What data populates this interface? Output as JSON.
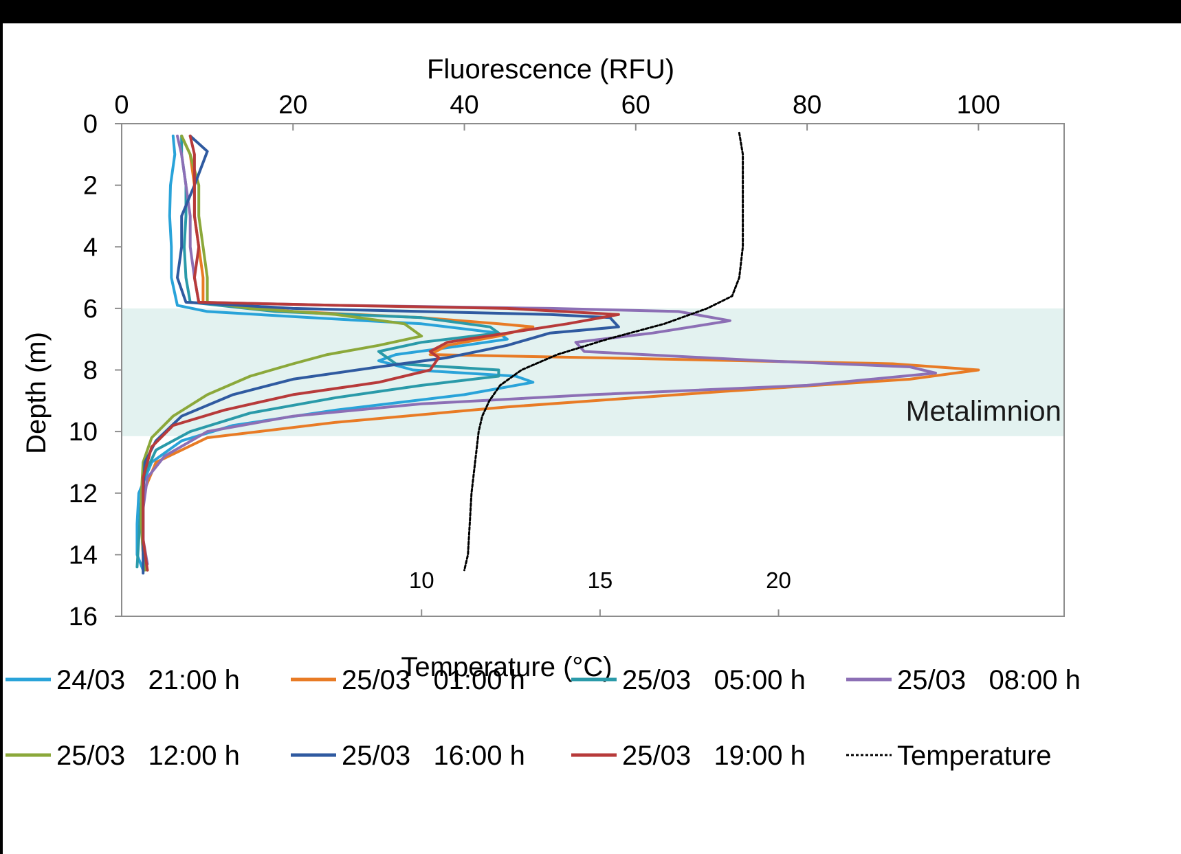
{
  "chart_data": {
    "type": "line",
    "top_axis": {
      "label": "Fluorescence (RFU)",
      "range": [
        0,
        110
      ],
      "ticks": [
        "0",
        "20",
        "40",
        "60",
        "80",
        "100"
      ]
    },
    "y_axis": {
      "label": "Depth (m)",
      "range": [
        0,
        16
      ],
      "inverted": true,
      "ticks": [
        "0",
        "2",
        "4",
        "6",
        "8",
        "10",
        "12",
        "14",
        "16"
      ]
    },
    "bottom_axis": {
      "label": "Temperature (°C)",
      "range": [
        1.6,
        28
      ],
      "ticks": [
        "10",
        "15",
        "20"
      ]
    },
    "band": {
      "label": "Metalimnion",
      "from_depth": 6,
      "to_depth": 10.15,
      "color": "#e3f2f0"
    },
    "series": [
      {
        "name": "24/03   21:00 h",
        "color": "#29a3d9",
        "axis": "fluorescence",
        "points": [
          [
            6,
            0.4
          ],
          [
            6.2,
            1
          ],
          [
            5.7,
            2
          ],
          [
            5.6,
            3
          ],
          [
            5.8,
            4
          ],
          [
            5.8,
            5
          ],
          [
            6.5,
            5.9
          ],
          [
            10,
            6.1
          ],
          [
            22,
            6.3
          ],
          [
            35,
            6.5
          ],
          [
            44,
            6.8
          ],
          [
            45,
            7
          ],
          [
            40,
            7.2
          ],
          [
            32,
            7.5
          ],
          [
            30,
            7.7
          ],
          [
            34,
            8
          ],
          [
            46,
            8.2
          ],
          [
            48,
            8.4
          ],
          [
            40,
            8.8
          ],
          [
            25,
            9.3
          ],
          [
            13,
            9.8
          ],
          [
            7,
            10.3
          ],
          [
            3.5,
            11
          ],
          [
            2,
            12
          ],
          [
            1.8,
            13
          ],
          [
            1.8,
            14
          ],
          [
            2.5,
            14.5
          ]
        ]
      },
      {
        "name": "25/03   01:00 h",
        "color": "#e87b25",
        "axis": "fluorescence",
        "points": [
          [
            7,
            0.4
          ],
          [
            8,
            1
          ],
          [
            8.5,
            2
          ],
          [
            8.5,
            3
          ],
          [
            9,
            4
          ],
          [
            9.5,
            5
          ],
          [
            9.5,
            5.8
          ],
          [
            20,
            6.1
          ],
          [
            35,
            6.3
          ],
          [
            44,
            6.5
          ],
          [
            48,
            6.6
          ],
          [
            44,
            6.9
          ],
          [
            38,
            7.2
          ],
          [
            36,
            7.5
          ],
          [
            55,
            7.6
          ],
          [
            90,
            7.8
          ],
          [
            100,
            8
          ],
          [
            92,
            8.3
          ],
          [
            70,
            8.7
          ],
          [
            45,
            9.2
          ],
          [
            25,
            9.7
          ],
          [
            10,
            10.2
          ],
          [
            4,
            11
          ],
          [
            2.5,
            12
          ],
          [
            2.3,
            13
          ],
          [
            2.5,
            14
          ],
          [
            3,
            14.5
          ]
        ]
      },
      {
        "name": "25/03   05:00 h",
        "color": "#2a9aa9",
        "axis": "fluorescence",
        "points": [
          [
            7,
            0.4
          ],
          [
            7,
            1
          ],
          [
            7.5,
            2
          ],
          [
            7.5,
            3
          ],
          [
            7.3,
            4
          ],
          [
            7.5,
            5
          ],
          [
            8,
            5.8
          ],
          [
            18,
            6.1
          ],
          [
            35,
            6.3
          ],
          [
            43,
            6.6
          ],
          [
            44,
            6.8
          ],
          [
            35,
            7.1
          ],
          [
            30,
            7.4
          ],
          [
            32,
            7.8
          ],
          [
            44,
            8
          ],
          [
            44,
            8.2
          ],
          [
            35,
            8.5
          ],
          [
            25,
            8.9
          ],
          [
            15,
            9.4
          ],
          [
            8,
            10
          ],
          [
            4,
            10.6
          ],
          [
            2.5,
            11.5
          ],
          [
            2.2,
            12.5
          ],
          [
            2,
            13.5
          ],
          [
            1.8,
            14.4
          ]
        ]
      },
      {
        "name": "25/03   08:00 h",
        "color": "#8c6fb5",
        "axis": "fluorescence",
        "points": [
          [
            6.5,
            0.4
          ],
          [
            7,
            1
          ],
          [
            7.5,
            2
          ],
          [
            8,
            3
          ],
          [
            8,
            4
          ],
          [
            8.5,
            5
          ],
          [
            9,
            5.8
          ],
          [
            25,
            5.9
          ],
          [
            50,
            6
          ],
          [
            65,
            6.1
          ],
          [
            71,
            6.4
          ],
          [
            62,
            6.8
          ],
          [
            53,
            7.1
          ],
          [
            54,
            7.4
          ],
          [
            75,
            7.7
          ],
          [
            92,
            7.9
          ],
          [
            95,
            8.1
          ],
          [
            80,
            8.5
          ],
          [
            55,
            8.8
          ],
          [
            35,
            9.1
          ],
          [
            20,
            9.5
          ],
          [
            10,
            10
          ],
          [
            5,
            10.8
          ],
          [
            3,
            11.5
          ],
          [
            2.5,
            12.5
          ],
          [
            2.5,
            13.5
          ],
          [
            3,
            14.3
          ]
        ]
      },
      {
        "name": "25/03   12:00 h",
        "color": "#8ba83a",
        "axis": "fluorescence",
        "points": [
          [
            7,
            0.4
          ],
          [
            8,
            1
          ],
          [
            9,
            2
          ],
          [
            9,
            3
          ],
          [
            9.5,
            4
          ],
          [
            10,
            5
          ],
          [
            10,
            5.8
          ],
          [
            15,
            6
          ],
          [
            25,
            6.2
          ],
          [
            33,
            6.5
          ],
          [
            35,
            6.9
          ],
          [
            30,
            7.2
          ],
          [
            24,
            7.5
          ],
          [
            20,
            7.8
          ],
          [
            15,
            8.2
          ],
          [
            10,
            8.8
          ],
          [
            6,
            9.5
          ],
          [
            3.5,
            10.2
          ],
          [
            2.5,
            11
          ],
          [
            2.3,
            12
          ],
          [
            2.3,
            13
          ],
          [
            2.5,
            14
          ],
          [
            2.7,
            14.5
          ]
        ]
      },
      {
        "name": "25/03   16:00 h",
        "color": "#2f5aa0",
        "axis": "fluorescence",
        "points": [
          [
            8,
            0.4
          ],
          [
            10,
            0.9
          ],
          [
            8.5,
            2
          ],
          [
            7,
            3
          ],
          [
            7,
            4
          ],
          [
            6.5,
            5
          ],
          [
            7.5,
            5.8
          ],
          [
            20,
            6
          ],
          [
            35,
            6.1
          ],
          [
            50,
            6.2
          ],
          [
            57,
            6.3
          ],
          [
            58,
            6.6
          ],
          [
            50,
            6.8
          ],
          [
            45,
            7.2
          ],
          [
            38,
            7.6
          ],
          [
            30,
            7.9
          ],
          [
            20,
            8.3
          ],
          [
            13,
            8.8
          ],
          [
            7,
            9.5
          ],
          [
            4,
            10.3
          ],
          [
            2.7,
            11
          ],
          [
            2.5,
            12
          ],
          [
            2.5,
            13
          ],
          [
            2.5,
            14
          ],
          [
            2.5,
            14.6
          ]
        ]
      },
      {
        "name": "25/03   19:00 h",
        "color": "#b73a3a",
        "axis": "fluorescence",
        "points": [
          [
            8,
            0.4
          ],
          [
            8.5,
            1
          ],
          [
            8.5,
            2
          ],
          [
            8.5,
            3
          ],
          [
            9,
            4
          ],
          [
            8.5,
            5
          ],
          [
            9,
            5.8
          ],
          [
            25,
            5.9
          ],
          [
            45,
            6
          ],
          [
            58,
            6.2
          ],
          [
            52,
            6.5
          ],
          [
            45,
            6.8
          ],
          [
            38,
            7.1
          ],
          [
            36,
            7.4
          ],
          [
            37,
            7.6
          ],
          [
            36,
            8
          ],
          [
            30,
            8.4
          ],
          [
            20,
            8.8
          ],
          [
            12,
            9.3
          ],
          [
            6,
            9.8
          ],
          [
            3.5,
            10.5
          ],
          [
            2.5,
            11.5
          ],
          [
            2.5,
            12.5
          ],
          [
            2.5,
            13.5
          ],
          [
            3,
            14.5
          ]
        ]
      },
      {
        "name": "Temperature",
        "color": "#000000",
        "axis": "temperature",
        "dashed": true,
        "points": [
          [
            18.9,
            0.3
          ],
          [
            19,
            1
          ],
          [
            19,
            2
          ],
          [
            19,
            3
          ],
          [
            19,
            4
          ],
          [
            18.9,
            5
          ],
          [
            18.7,
            5.6
          ],
          [
            18,
            6
          ],
          [
            16.8,
            6.5
          ],
          [
            15.2,
            7
          ],
          [
            13.8,
            7.5
          ],
          [
            12.8,
            8
          ],
          [
            12.2,
            8.5
          ],
          [
            11.9,
            9
          ],
          [
            11.7,
            9.5
          ],
          [
            11.6,
            10
          ],
          [
            11.5,
            11
          ],
          [
            11.4,
            12
          ],
          [
            11.35,
            13
          ],
          [
            11.3,
            14
          ],
          [
            11.2,
            14.5
          ]
        ]
      }
    ]
  }
}
